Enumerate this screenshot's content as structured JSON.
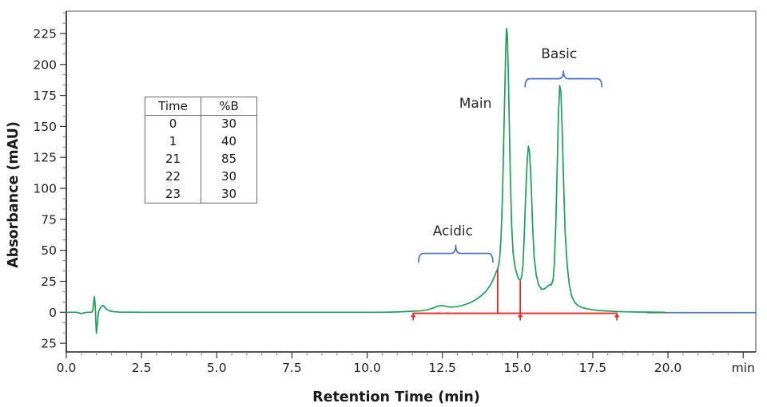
{
  "figure": {
    "kind": "HPLC chromatogram"
  },
  "gradient_table": {
    "headers": [
      "Time",
      "%B"
    ],
    "rows": [
      [
        "0",
        "30"
      ],
      [
        "1",
        "40"
      ],
      [
        "21",
        "85"
      ],
      [
        "22",
        "30"
      ],
      [
        "23",
        "30"
      ]
    ]
  },
  "colors": {
    "trace_green": "#1ba158",
    "post_run_blue": "#5577c4",
    "integration_red": "#ee2222",
    "brace_blue": "#4a73c8",
    "frame_gray": "#8a8a8a",
    "axis_black": "#1c1c1c",
    "text": "#222222"
  },
  "chart_data": {
    "type": "line",
    "title": "",
    "xlabel": "Retention Time (min)",
    "ylabel": "Absorbance (mAU)",
    "xlim": [
      0,
      22.92
    ],
    "ylim": [
      -32,
      243
    ],
    "grid": false,
    "legend": "none",
    "x_axis": {
      "major_ticks": [
        {
          "v": 0,
          "label": "0.0"
        },
        {
          "v": 2.5,
          "label": "2.5"
        },
        {
          "v": 5,
          "label": "5.0"
        },
        {
          "v": 7.5,
          "label": "7.5"
        },
        {
          "v": 10,
          "label": "10.0"
        },
        {
          "v": 12.5,
          "label": "12.5"
        },
        {
          "v": 15,
          "label": "15.0"
        },
        {
          "v": 17.5,
          "label": "17.5"
        },
        {
          "v": 20,
          "label": "20.0"
        },
        {
          "v": 22.5,
          "label": "min"
        }
      ],
      "minor_step": 0.5
    },
    "y_axis": {
      "major_ticks": [
        {
          "v": 225,
          "label": "225"
        },
        {
          "v": 200,
          "label": "200"
        },
        {
          "v": 175,
          "label": "175"
        },
        {
          "v": 150,
          "label": "150"
        },
        {
          "v": 125,
          "label": "125"
        },
        {
          "v": 100,
          "label": "100"
        },
        {
          "v": 75,
          "label": "75"
        },
        {
          "v": 50,
          "label": "50"
        },
        {
          "v": 25,
          "label": "25"
        },
        {
          "v": 0,
          "label": "0"
        },
        {
          "v": -25,
          "label": "25"
        }
      ],
      "minor_step": 8.3333
    },
    "series": [
      {
        "name": "chromatogram",
        "color": "#1ba158",
        "points": [
          [
            0,
            0
          ],
          [
            0.3,
            0
          ],
          [
            0.42,
            -0.4
          ],
          [
            0.5,
            -1.2
          ],
          [
            0.58,
            -0.4
          ],
          [
            0.7,
            0
          ],
          [
            0.84,
            0
          ],
          [
            0.88,
            1.5
          ],
          [
            0.91,
            8
          ],
          [
            0.93,
            12.5
          ],
          [
            0.95,
            9
          ],
          [
            0.97,
            0
          ],
          [
            0.985,
            -10
          ],
          [
            1.0,
            -17
          ],
          [
            1.02,
            -13
          ],
          [
            1.05,
            -4
          ],
          [
            1.08,
            1
          ],
          [
            1.12,
            3
          ],
          [
            1.17,
            5
          ],
          [
            1.22,
            5.5
          ],
          [
            1.28,
            4
          ],
          [
            1.35,
            2.2
          ],
          [
            1.45,
            1
          ],
          [
            1.6,
            0.4
          ],
          [
            1.8,
            0.1
          ],
          [
            2.5,
            0
          ],
          [
            5,
            0
          ],
          [
            8,
            0
          ],
          [
            10.5,
            0
          ],
          [
            11.0,
            0.3
          ],
          [
            11.4,
            0.7
          ],
          [
            11.8,
            1.2
          ],
          [
            12.0,
            2
          ],
          [
            12.2,
            3.5
          ],
          [
            12.35,
            5
          ],
          [
            12.5,
            5.5
          ],
          [
            12.65,
            4.6
          ],
          [
            12.8,
            4.2
          ],
          [
            13.0,
            4.6
          ],
          [
            13.2,
            5.8
          ],
          [
            13.4,
            7.5
          ],
          [
            13.6,
            10
          ],
          [
            13.8,
            13.5
          ],
          [
            13.95,
            17
          ],
          [
            14.1,
            22
          ],
          [
            14.2,
            27
          ],
          [
            14.3,
            33
          ],
          [
            14.35,
            36
          ],
          [
            14.4,
            42
          ],
          [
            14.45,
            60
          ],
          [
            14.5,
            95
          ],
          [
            14.55,
            150
          ],
          [
            14.6,
            205
          ],
          [
            14.63,
            229
          ],
          [
            14.66,
            224
          ],
          [
            14.7,
            185
          ],
          [
            14.75,
            120
          ],
          [
            14.8,
            72
          ],
          [
            14.85,
            48
          ],
          [
            14.92,
            36
          ],
          [
            15.0,
            29
          ],
          [
            15.05,
            26.5
          ],
          [
            15.09,
            26
          ],
          [
            15.13,
            28
          ],
          [
            15.18,
            38
          ],
          [
            15.22,
            60
          ],
          [
            15.27,
            95
          ],
          [
            15.32,
            122
          ],
          [
            15.36,
            134
          ],
          [
            15.4,
            129
          ],
          [
            15.45,
            105
          ],
          [
            15.5,
            70
          ],
          [
            15.55,
            45
          ],
          [
            15.62,
            30
          ],
          [
            15.7,
            22
          ],
          [
            15.8,
            18.5
          ],
          [
            15.9,
            19
          ],
          [
            16.0,
            21
          ],
          [
            16.08,
            22.5
          ],
          [
            16.12,
            22
          ],
          [
            16.18,
            26
          ],
          [
            16.22,
            38
          ],
          [
            16.27,
            70
          ],
          [
            16.32,
            120
          ],
          [
            16.36,
            160
          ],
          [
            16.4,
            183
          ],
          [
            16.44,
            178
          ],
          [
            16.48,
            150
          ],
          [
            16.53,
            105
          ],
          [
            16.58,
            65
          ],
          [
            16.65,
            38
          ],
          [
            16.72,
            22
          ],
          [
            16.8,
            13
          ],
          [
            16.9,
            8
          ],
          [
            17.0,
            5.5
          ],
          [
            17.15,
            3.8
          ],
          [
            17.3,
            2.8
          ],
          [
            17.5,
            2
          ],
          [
            17.7,
            1.4
          ],
          [
            18.0,
            1
          ],
          [
            18.3,
            0.6
          ],
          [
            18.6,
            0.4
          ],
          [
            19.0,
            0.2
          ],
          [
            19.5,
            0.1
          ],
          [
            19.9,
            0
          ]
        ]
      },
      {
        "name": "post-run-baseline",
        "color": "#5577c4",
        "points": [
          [
            19.3,
            -0.3
          ],
          [
            22.92,
            -0.3
          ]
        ]
      }
    ],
    "peaks": [
      {
        "label": "Main",
        "t": 14.63,
        "height_mau": 229
      },
      {
        "label": "Basic-1",
        "t": 15.36,
        "height_mau": 134
      },
      {
        "label": "Basic-2",
        "t": 16.4,
        "height_mau": 183
      }
    ],
    "integration": {
      "baseline": {
        "t_start": 11.5,
        "t_end": 18.32,
        "v": -0.8
      },
      "drop_lines": [
        {
          "t": 14.34,
          "top_mau": 36
        },
        {
          "t": 15.09,
          "top_mau": 26
        }
      ],
      "arrow_times": [
        11.53,
        15.09,
        18.3
      ]
    },
    "region_braces": [
      {
        "id": "acidic",
        "label": "Acidic",
        "t1": 11.71,
        "t2": 14.18,
        "v_line": 47.5,
        "v_hook": 40.5,
        "v_tick": 54.5
      },
      {
        "id": "basic",
        "label": "Basic",
        "t1": 15.25,
        "t2": 17.8,
        "v_line": 188.5,
        "v_hook": 182,
        "v_tick": 195
      }
    ],
    "annotations": [
      {
        "id": "main",
        "text": "Main",
        "t": 13.6,
        "mau": 169
      },
      {
        "id": "basic",
        "text": "Basic",
        "t": 16.38,
        "mau": 209
      },
      {
        "id": "acidic",
        "text": "Acidic",
        "t": 12.85,
        "mau": 66
      }
    ]
  }
}
